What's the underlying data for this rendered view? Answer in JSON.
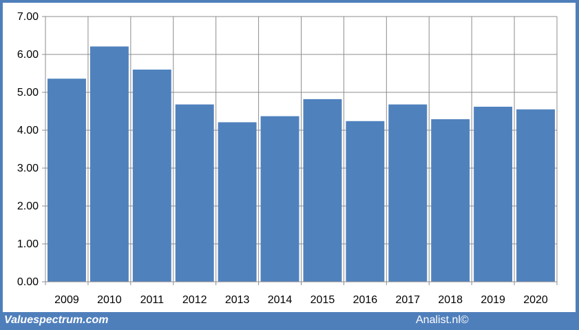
{
  "chart_data": {
    "type": "bar",
    "categories": [
      "2009",
      "2010",
      "2011",
      "2012",
      "2013",
      "2014",
      "2015",
      "2016",
      "2017",
      "2018",
      "2019",
      "2020"
    ],
    "values": [
      5.36,
      6.21,
      5.6,
      4.68,
      4.21,
      4.37,
      4.82,
      4.24,
      4.68,
      4.29,
      4.62,
      4.55
    ],
    "y_ticks": [
      "0.00",
      "1.00",
      "2.00",
      "3.00",
      "4.00",
      "5.00",
      "6.00",
      "7.00"
    ],
    "ylim": [
      0,
      7
    ],
    "grid": true,
    "bar_color": "#4f81bd",
    "grid_color": "#8c8c8c"
  },
  "footer": {
    "left": "Valuespectrum.com",
    "right": "Analist.nl©"
  },
  "colors": {
    "background": "#4f7fbb",
    "panel": "#ffffff"
  }
}
